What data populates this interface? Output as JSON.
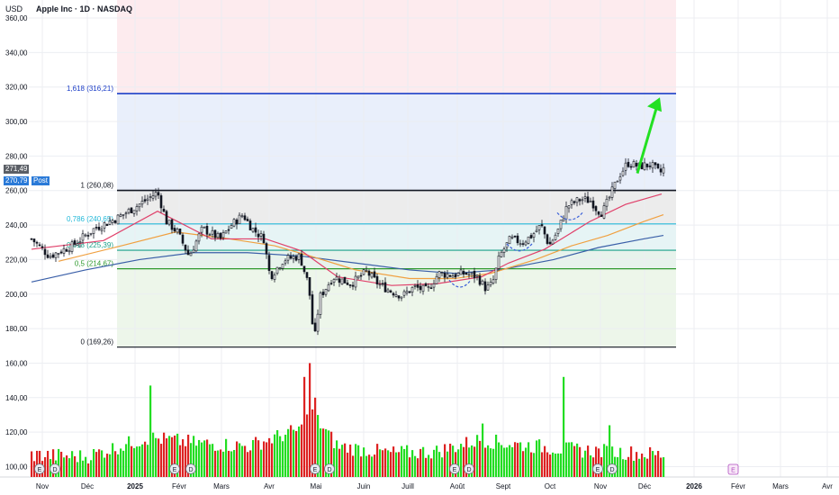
{
  "header": {
    "currency": "USD",
    "symbol": "Apple Inc · 1D · NASDAQ"
  },
  "price_tags": {
    "last": "271,49",
    "post": "270,79",
    "post_label": "Post"
  },
  "colors": {
    "up": "#22dd22",
    "down": "#dd2222",
    "fib_line": "#131722",
    "fib_1618": "#1e40c8",
    "fib_0786": "#22b8d8",
    "fib_0618": "#1aa089",
    "fib_05": "#2e9a2e",
    "sma_short": "#e0406a",
    "sma_mid": "#f0a040",
    "sma_long": "#3a5fa8",
    "arrow": "#22e022",
    "dash_marks": "#3a5fd8"
  },
  "chart_data": {
    "type": "candlestick",
    "title": "Apple Inc · 1D · NASDAQ",
    "currency": "USD",
    "ylim": [
      94,
      360
    ],
    "grid": true,
    "y_ticks": [
      "100,00",
      "120,00",
      "140,00",
      "160,00",
      "180,00",
      "200,00",
      "220,00",
      "240,00",
      "260,00",
      "280,00",
      "300,00",
      "320,00",
      "340,00",
      "360,00"
    ],
    "x_ticks": [
      "Nov",
      "Déc",
      "2025",
      "Févr",
      "Mars",
      "Avr",
      "Mai",
      "Juin",
      "Juill",
      "Août",
      "Sept",
      "Oct",
      "Nov",
      "Déc",
      "2026",
      "Févr",
      "Mars",
      "Avr"
    ],
    "fib_levels": [
      {
        "label": "1,618 (316,21)",
        "value": 316.21
      },
      {
        "label": "1 (260,08)",
        "value": 260.08
      },
      {
        "label": "0,786 (240,65)",
        "value": 240.65
      },
      {
        "label": "0,618 (225,39)",
        "value": 225.39
      },
      {
        "label": "0,5 (214,67)",
        "value": 214.67
      },
      {
        "label": "0 (169,26)",
        "value": 169.26
      }
    ],
    "price_path": [
      [
        0,
        232
      ],
      [
        20,
        222
      ],
      [
        45,
        228
      ],
      [
        70,
        238
      ],
      [
        95,
        244
      ],
      [
        120,
        252
      ],
      [
        140,
        259
      ],
      [
        150,
        242
      ],
      [
        162,
        236
      ],
      [
        175,
        222
      ],
      [
        190,
        238
      ],
      [
        210,
        232
      ],
      [
        222,
        240
      ],
      [
        235,
        246
      ],
      [
        245,
        238
      ],
      [
        258,
        232
      ],
      [
        265,
        210
      ],
      [
        280,
        220
      ],
      [
        298,
        222
      ],
      [
        308,
        205
      ],
      [
        314,
        172
      ],
      [
        320,
        198
      ],
      [
        335,
        210
      ],
      [
        355,
        206
      ],
      [
        372,
        213
      ],
      [
        385,
        206
      ],
      [
        398,
        202
      ],
      [
        412,
        199
      ],
      [
        425,
        204
      ],
      [
        440,
        202
      ],
      [
        452,
        212
      ],
      [
        468,
        211
      ],
      [
        482,
        212
      ],
      [
        495,
        210
      ],
      [
        505,
        203
      ],
      [
        512,
        206
      ],
      [
        520,
        222
      ],
      [
        532,
        232
      ],
      [
        545,
        230
      ],
      [
        556,
        234
      ],
      [
        566,
        240
      ],
      [
        575,
        228
      ],
      [
        585,
        237
      ],
      [
        595,
        251
      ],
      [
        610,
        255
      ],
      [
        622,
        254
      ],
      [
        628,
        249
      ],
      [
        634,
        247
      ],
      [
        642,
        256
      ],
      [
        652,
        268
      ],
      [
        662,
        276
      ],
      [
        675,
        274
      ],
      [
        688,
        275
      ],
      [
        698,
        270
      ],
      [
        704,
        274
      ]
    ],
    "volume_path": [
      [
        0,
        105
      ],
      [
        60,
        104
      ],
      [
        130,
        115
      ],
      [
        180,
        112
      ],
      [
        240,
        110
      ],
      [
        300,
        120
      ],
      [
        310,
        130
      ],
      [
        340,
        110
      ],
      [
        400,
        106
      ],
      [
        450,
        107
      ],
      [
        500,
        114
      ],
      [
        520,
        112
      ],
      [
        600,
        108
      ],
      [
        640,
        107
      ],
      [
        704,
        105
      ]
    ],
    "volume_spikes": [
      [
        133,
        147
      ],
      [
        308,
        160
      ],
      [
        304,
        152
      ],
      [
        316,
        140
      ],
      [
        500,
        125
      ],
      [
        590,
        152
      ],
      [
        643,
        124
      ]
    ],
    "sma_short": [
      [
        0,
        226
      ],
      [
        80,
        231
      ],
      [
        140,
        248
      ],
      [
        200,
        232
      ],
      [
        260,
        232
      ],
      [
        300,
        225
      ],
      [
        340,
        210
      ],
      [
        400,
        205
      ],
      [
        450,
        206
      ],
      [
        500,
        210
      ],
      [
        530,
        218
      ],
      [
        570,
        226
      ],
      [
        620,
        242
      ],
      [
        660,
        252
      ],
      [
        700,
        258
      ]
    ],
    "sma_mid": [
      [
        30,
        219
      ],
      [
        100,
        228
      ],
      [
        160,
        236
      ],
      [
        220,
        232
      ],
      [
        270,
        228
      ],
      [
        310,
        222
      ],
      [
        360,
        214
      ],
      [
        420,
        209
      ],
      [
        470,
        209
      ],
      [
        510,
        212
      ],
      [
        560,
        220
      ],
      [
        600,
        228
      ],
      [
        640,
        234
      ],
      [
        680,
        242
      ],
      [
        702,
        246
      ]
    ],
    "sma_long": [
      [
        0,
        207
      ],
      [
        60,
        214
      ],
      [
        120,
        220
      ],
      [
        180,
        224
      ],
      [
        240,
        224
      ],
      [
        300,
        222
      ],
      [
        360,
        218
      ],
      [
        420,
        214
      ],
      [
        470,
        212
      ],
      [
        520,
        214
      ],
      [
        580,
        220
      ],
      [
        630,
        227
      ],
      [
        680,
        232
      ],
      [
        702,
        234
      ]
    ]
  }
}
